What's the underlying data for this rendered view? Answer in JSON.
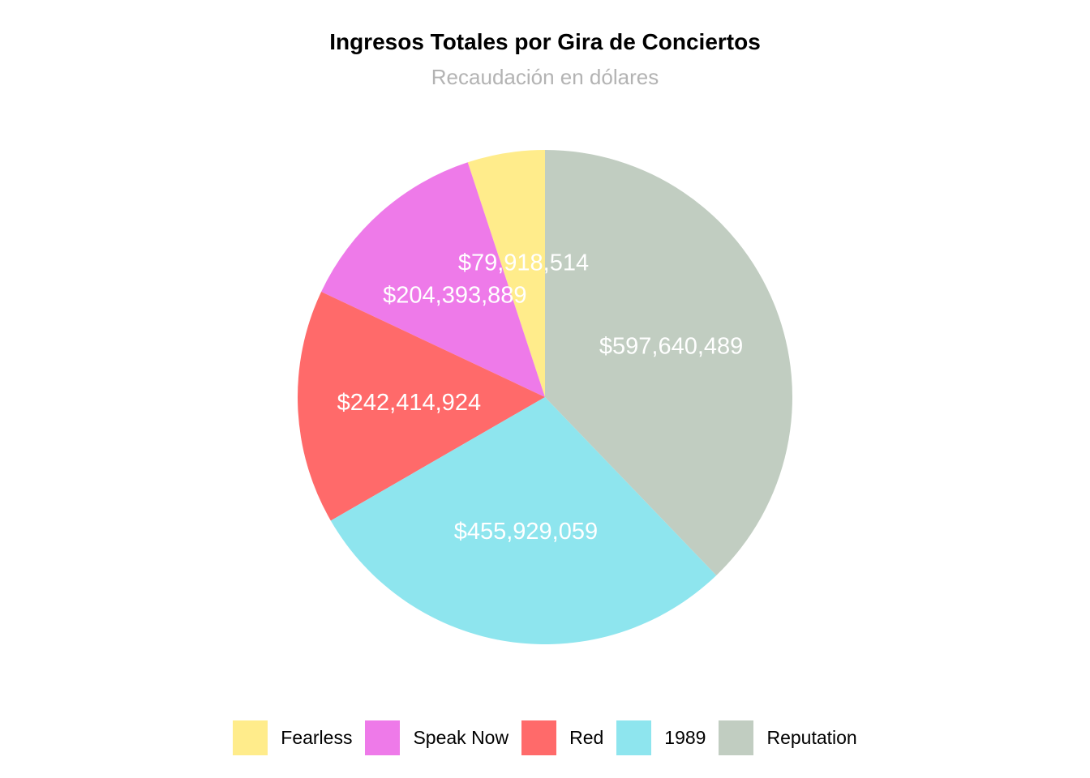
{
  "chart_data": {
    "type": "pie",
    "title": "Ingresos Totales por Gira de Conciertos",
    "subtitle": "Recaudación en dólares",
    "start_angle": "12 o'clock",
    "direction": "counter-clockwise",
    "legend_position": "bottom",
    "slices": [
      {
        "name": "Fearless",
        "value": 79918514,
        "label": "$79,918,514",
        "color": "#FFEC8B"
      },
      {
        "name": "Speak Now",
        "value": 204393889,
        "label": "$204,393,889",
        "color": "#EE7AE9"
      },
      {
        "name": "Red",
        "value": 242414924,
        "label": "$242,414,924",
        "color": "#FF6A6A"
      },
      {
        "name": "1989",
        "value": 455929059,
        "label": "$455,929,059",
        "color": "#8EE5EE"
      },
      {
        "name": "Reputation",
        "value": 597640489,
        "label": "$597,640,489",
        "color": "#C1CDC1"
      }
    ]
  }
}
